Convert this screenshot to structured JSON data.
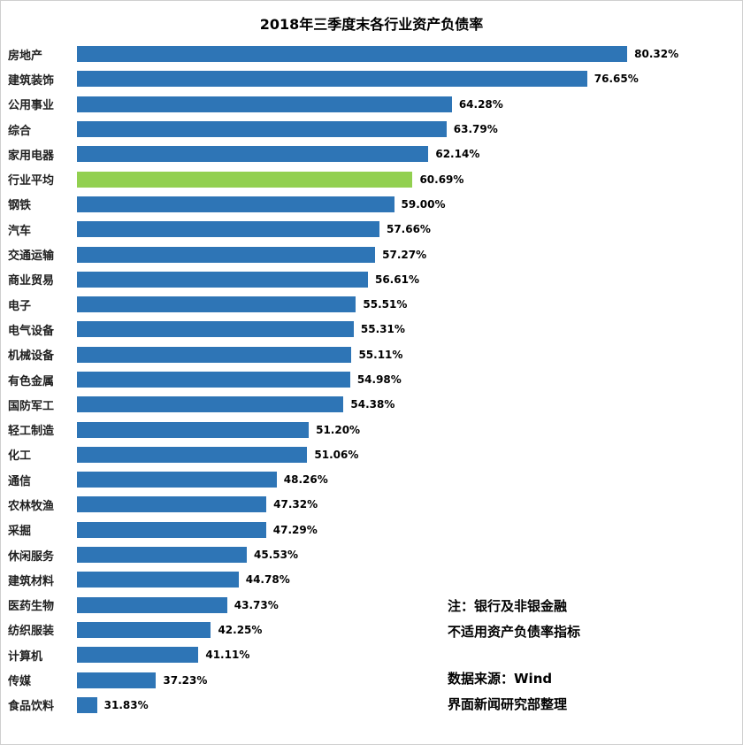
{
  "chart_data": {
    "type": "bar",
    "orientation": "horizontal",
    "title": "2018年三季度末各行业资产负债率",
    "categories": [
      "房地产",
      "建筑装饰",
      "公用事业",
      "综合",
      "家用电器",
      "行业平均",
      "钢铁",
      "汽车",
      "交通运输",
      "商业贸易",
      "电子",
      "电气设备",
      "机械设备",
      "有色金属",
      "国防军工",
      "轻工制造",
      "化工",
      "通信",
      "农林牧渔",
      "采掘",
      "休闲服务",
      "建筑材料",
      "医药生物",
      "纺织服装",
      "计算机",
      "传媒",
      "食品饮料"
    ],
    "values": [
      80.32,
      76.65,
      64.28,
      63.79,
      62.14,
      60.69,
      59.0,
      57.66,
      57.27,
      56.61,
      55.51,
      55.31,
      55.11,
      54.98,
      54.38,
      51.2,
      51.06,
      48.26,
      47.32,
      47.29,
      45.53,
      44.78,
      43.73,
      42.25,
      41.11,
      37.23,
      31.83
    ],
    "value_labels": [
      "80.32%",
      "76.65%",
      "64.28%",
      "63.79%",
      "62.14%",
      "60.69%",
      "59.00%",
      "57.66%",
      "57.27%",
      "56.61%",
      "55.51%",
      "55.31%",
      "55.11%",
      "54.98%",
      "54.38%",
      "51.20%",
      "51.06%",
      "48.26%",
      "47.32%",
      "47.29%",
      "45.53%",
      "44.78%",
      "43.73%",
      "42.25%",
      "41.11%",
      "37.23%",
      "31.83%"
    ],
    "highlight_index": 5,
    "highlight_category": "行业平均",
    "bar_color": "#2E75B6",
    "highlight_color": "#92D050",
    "xlim": [
      30,
      85
    ],
    "xlabel": "",
    "ylabel": "",
    "grid": false,
    "legend": false
  },
  "notes": {
    "line1": "注：银行及非银金融",
    "line2": "不适用资产负债率指标",
    "line3": "数据来源：Wind",
    "line4": "界面新闻研究部整理"
  }
}
